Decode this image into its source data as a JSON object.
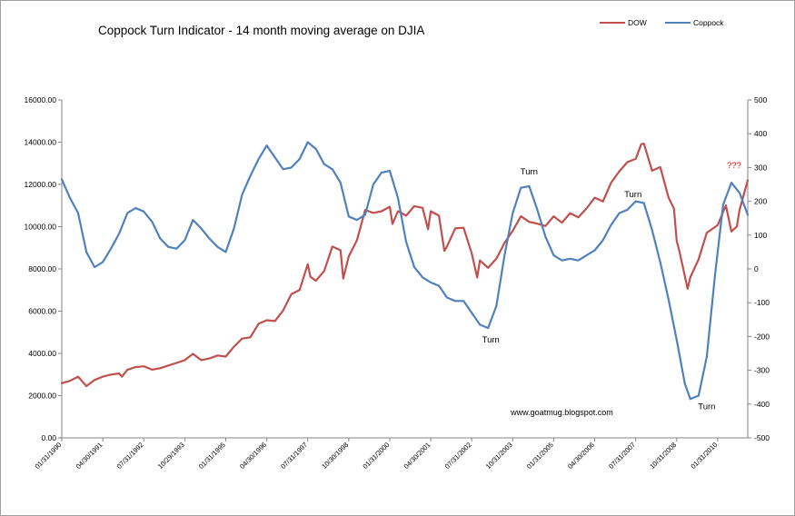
{
  "chart_data": {
    "type": "line",
    "title": "Coppock Turn Indicator  - 14 month moving average on DJIA",
    "legend": {
      "placement": "top-right",
      "entries": [
        "DOW",
        "Coppock"
      ]
    },
    "colors": {
      "dow": "#c0504d",
      "coppock": "#4f81bd",
      "turn_text": "#000000",
      "question_text": "#ff0000",
      "border": "#a0a0a0"
    },
    "grid": false,
    "y_left": {
      "range": [
        0,
        16000
      ],
      "ticks": [
        0,
        2000,
        4000,
        6000,
        8000,
        10000,
        12000,
        14000,
        16000
      ],
      "tick_labels": [
        "0.00",
        "2000.00",
        "4000.00",
        "6000.00",
        "8000.00",
        "10000.00",
        "12000.00",
        "14000.00",
        "16000.00"
      ]
    },
    "y_right": {
      "range": [
        -500,
        500
      ],
      "ticks": [
        -500,
        -400,
        -300,
        -200,
        -100,
        0,
        100,
        200,
        300,
        400,
        500
      ],
      "tick_labels": [
        "-500",
        "-400",
        "-300",
        "-200",
        "-100",
        "0",
        "100",
        "200",
        "300",
        "400",
        "500"
      ]
    },
    "x_range": [
      "1990-01",
      "2010-12"
    ],
    "x_tick_labels": [
      {
        "date": "1990-01",
        "label": "01/31/1990"
      },
      {
        "date": "1991-04",
        "label": "04/30/1991"
      },
      {
        "date": "1992-07",
        "label": "07/31/1992"
      },
      {
        "date": "1993-10",
        "label": "10/29/1993"
      },
      {
        "date": "1995-01",
        "label": "01/31/1995"
      },
      {
        "date": "1996-04",
        "label": "04/30/1996"
      },
      {
        "date": "1997-07",
        "label": "07/31/1997"
      },
      {
        "date": "1998-10",
        "label": "10/30/1998"
      },
      {
        "date": "2000-01",
        "label": "01/31/2000"
      },
      {
        "date": "2001-04",
        "label": "04/30/2001"
      },
      {
        "date": "2002-07",
        "label": "07/31/2002"
      },
      {
        "date": "2003-10",
        "label": "10/31/2003"
      },
      {
        "date": "2005-01",
        "label": "01/31/2005"
      },
      {
        "date": "2006-04",
        "label": "04/30/2006"
      },
      {
        "date": "2007-07",
        "label": "07/31/2007"
      },
      {
        "date": "2008-10",
        "label": "10/31/2008"
      },
      {
        "date": "2010-01",
        "label": "01/31/2010"
      }
    ],
    "series": [
      {
        "name": "DOW",
        "axis": "left",
        "points": [
          [
            "1990-01",
            2590
          ],
          [
            "1990-04",
            2700
          ],
          [
            "1990-07",
            2900
          ],
          [
            "1990-10",
            2450
          ],
          [
            "1991-01",
            2740
          ],
          [
            "1991-04",
            2900
          ],
          [
            "1991-07",
            3000
          ],
          [
            "1991-10",
            3050
          ],
          [
            "1991-11",
            2900
          ],
          [
            "1992-01",
            3220
          ],
          [
            "1992-04",
            3350
          ],
          [
            "1992-07",
            3390
          ],
          [
            "1992-10",
            3230
          ],
          [
            "1993-01",
            3300
          ],
          [
            "1993-04",
            3430
          ],
          [
            "1993-07",
            3550
          ],
          [
            "1993-10",
            3680
          ],
          [
            "1994-01",
            3980
          ],
          [
            "1994-04",
            3680
          ],
          [
            "1994-07",
            3760
          ],
          [
            "1994-10",
            3900
          ],
          [
            "1995-01",
            3850
          ],
          [
            "1995-04",
            4320
          ],
          [
            "1995-07",
            4700
          ],
          [
            "1995-10",
            4760
          ],
          [
            "1996-01",
            5400
          ],
          [
            "1996-04",
            5570
          ],
          [
            "1996-07",
            5530
          ],
          [
            "1996-10",
            6030
          ],
          [
            "1997-01",
            6810
          ],
          [
            "1997-04",
            7000
          ],
          [
            "1997-07",
            8220
          ],
          [
            "1997-08",
            7620
          ],
          [
            "1997-10",
            7440
          ],
          [
            "1998-01",
            7900
          ],
          [
            "1998-04",
            9060
          ],
          [
            "1998-07",
            8880
          ],
          [
            "1998-08",
            7540
          ],
          [
            "1998-10",
            8590
          ],
          [
            "1999-01",
            9360
          ],
          [
            "1999-04",
            10790
          ],
          [
            "1999-07",
            10650
          ],
          [
            "1999-10",
            10730
          ],
          [
            "2000-01",
            10940
          ],
          [
            "2000-02",
            10130
          ],
          [
            "2000-04",
            10730
          ],
          [
            "2000-07",
            10520
          ],
          [
            "2000-10",
            10970
          ],
          [
            "2001-01",
            10890
          ],
          [
            "2001-03",
            9880
          ],
          [
            "2001-04",
            10730
          ],
          [
            "2001-07",
            10520
          ],
          [
            "2001-09",
            8850
          ],
          [
            "2001-10",
            9080
          ],
          [
            "2002-01",
            9920
          ],
          [
            "2002-04",
            9950
          ],
          [
            "2002-07",
            8740
          ],
          [
            "2002-09",
            7590
          ],
          [
            "2002-10",
            8400
          ],
          [
            "2003-01",
            8050
          ],
          [
            "2003-04",
            8480
          ],
          [
            "2003-07",
            9230
          ],
          [
            "2003-10",
            9800
          ],
          [
            "2004-01",
            10490
          ],
          [
            "2004-04",
            10230
          ],
          [
            "2004-07",
            10140
          ],
          [
            "2004-10",
            10030
          ],
          [
            "2005-01",
            10490
          ],
          [
            "2005-04",
            10190
          ],
          [
            "2005-07",
            10640
          ],
          [
            "2005-10",
            10440
          ],
          [
            "2006-01",
            10860
          ],
          [
            "2006-04",
            11370
          ],
          [
            "2006-07",
            11190
          ],
          [
            "2006-10",
            12080
          ],
          [
            "2007-01",
            12620
          ],
          [
            "2007-04",
            13060
          ],
          [
            "2007-07",
            13210
          ],
          [
            "2007-09",
            13900
          ],
          [
            "2007-10",
            13930
          ],
          [
            "2008-01",
            12650
          ],
          [
            "2008-04",
            12820
          ],
          [
            "2008-07",
            11380
          ],
          [
            "2008-09",
            10850
          ],
          [
            "2008-10",
            9330
          ],
          [
            "2008-11",
            8830
          ],
          [
            "2009-02",
            7060
          ],
          [
            "2009-03",
            7610
          ],
          [
            "2009-06",
            8450
          ],
          [
            "2009-09",
            9710
          ],
          [
            "2010-01",
            10070
          ],
          [
            "2010-04",
            11010
          ],
          [
            "2010-06",
            9770
          ],
          [
            "2010-08",
            10010
          ],
          [
            "2010-09",
            10790
          ],
          [
            "2010-12",
            12200
          ]
        ]
      },
      {
        "name": "Coppock",
        "axis": "right",
        "points": [
          [
            "1990-01",
            265
          ],
          [
            "1990-04",
            210
          ],
          [
            "1990-07",
            165
          ],
          [
            "1990-10",
            50
          ],
          [
            "1991-01",
            5
          ],
          [
            "1991-04",
            20
          ],
          [
            "1991-07",
            60
          ],
          [
            "1991-10",
            105
          ],
          [
            "1992-01",
            165
          ],
          [
            "1992-04",
            180
          ],
          [
            "1992-07",
            170
          ],
          [
            "1992-10",
            140
          ],
          [
            "1993-01",
            90
          ],
          [
            "1993-04",
            65
          ],
          [
            "1993-07",
            60
          ],
          [
            "1993-10",
            85
          ],
          [
            "1994-01",
            145
          ],
          [
            "1994-04",
            120
          ],
          [
            "1994-07",
            90
          ],
          [
            "1994-10",
            65
          ],
          [
            "1995-01",
            50
          ],
          [
            "1995-04",
            120
          ],
          [
            "1995-07",
            220
          ],
          [
            "1995-10",
            275
          ],
          [
            "1996-01",
            325
          ],
          [
            "1996-04",
            365
          ],
          [
            "1996-07",
            330
          ],
          [
            "1996-10",
            295
          ],
          [
            "1997-01",
            300
          ],
          [
            "1997-04",
            325
          ],
          [
            "1997-07",
            375
          ],
          [
            "1997-10",
            355
          ],
          [
            "1998-01",
            310
          ],
          [
            "1998-04",
            295
          ],
          [
            "1998-07",
            255
          ],
          [
            "1998-10",
            155
          ],
          [
            "1999-01",
            145
          ],
          [
            "1999-04",
            160
          ],
          [
            "1999-07",
            250
          ],
          [
            "1999-10",
            285
          ],
          [
            "2000-01",
            290
          ],
          [
            "2000-04",
            210
          ],
          [
            "2000-07",
            80
          ],
          [
            "2000-10",
            5
          ],
          [
            "2001-01",
            -25
          ],
          [
            "2001-04",
            -40
          ],
          [
            "2001-07",
            -50
          ],
          [
            "2001-10",
            -85
          ],
          [
            "2002-01",
            -95
          ],
          [
            "2002-04",
            -95
          ],
          [
            "2002-07",
            -130
          ],
          [
            "2002-10",
            -165
          ],
          [
            "2003-01",
            -175
          ],
          [
            "2003-04",
            -110
          ],
          [
            "2003-07",
            40
          ],
          [
            "2003-10",
            165
          ],
          [
            "2004-01",
            240
          ],
          [
            "2004-04",
            245
          ],
          [
            "2004-07",
            175
          ],
          [
            "2004-10",
            95
          ],
          [
            "2005-01",
            40
          ],
          [
            "2005-04",
            25
          ],
          [
            "2005-07",
            30
          ],
          [
            "2005-10",
            25
          ],
          [
            "2006-01",
            40
          ],
          [
            "2006-04",
            55
          ],
          [
            "2006-07",
            85
          ],
          [
            "2006-10",
            130
          ],
          [
            "2007-01",
            165
          ],
          [
            "2007-04",
            175
          ],
          [
            "2007-07",
            200
          ],
          [
            "2007-10",
            195
          ],
          [
            "2008-01",
            115
          ],
          [
            "2008-04",
            20
          ],
          [
            "2008-07",
            -90
          ],
          [
            "2008-10",
            -210
          ],
          [
            "2009-01",
            -340
          ],
          [
            "2009-03",
            -385
          ],
          [
            "2009-06",
            -375
          ],
          [
            "2009-09",
            -260
          ],
          [
            "2009-12",
            -20
          ],
          [
            "2010-03",
            190
          ],
          [
            "2010-06",
            255
          ],
          [
            "2010-09",
            225
          ],
          [
            "2010-12",
            160
          ]
        ]
      }
    ],
    "annotations": [
      {
        "text": "Turn",
        "date": "2004-04",
        "value": 280,
        "axis": "right",
        "color": "#000000"
      },
      {
        "text": "Turn",
        "date": "2003-02",
        "value": -218,
        "axis": "right",
        "color": "#000000"
      },
      {
        "text": "Turn",
        "date": "2007-06",
        "value": 213,
        "axis": "right",
        "color": "#000000"
      },
      {
        "text": "Turn",
        "date": "2009-09",
        "value": -415,
        "axis": "right",
        "color": "#000000"
      },
      {
        "text": "???",
        "date": "2010-07",
        "value": 298,
        "axis": "right",
        "color": "#ff0000"
      },
      {
        "text": "www.goatmug.blogspot.com",
        "date": "2005-04",
        "value": -433,
        "axis": "right",
        "color": "#000000"
      }
    ]
  }
}
